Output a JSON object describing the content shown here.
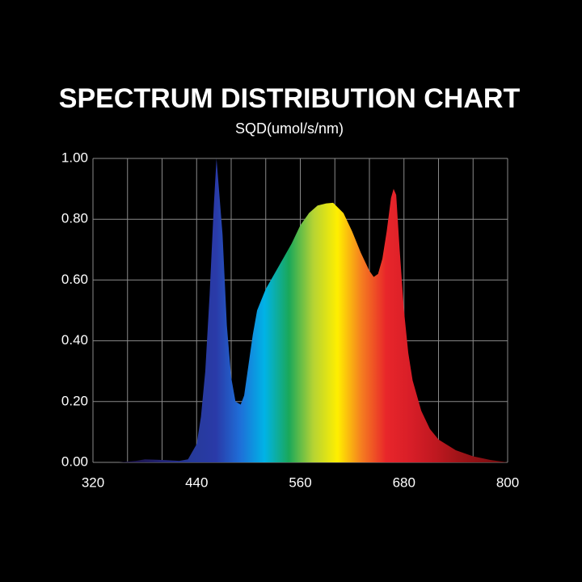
{
  "chart_data": {
    "type": "area",
    "title": "SPECTRUM DISTRIBUTION CHART",
    "subtitle": "SQD(umol/s/nm)",
    "x": [
      350,
      370,
      380,
      400,
      420,
      430,
      440,
      445,
      450,
      455,
      460,
      463,
      470,
      475,
      480,
      485,
      491,
      495,
      500,
      505,
      510,
      520,
      530,
      540,
      550,
      560,
      570,
      580,
      590,
      598,
      610,
      620,
      630,
      640,
      645,
      650,
      655,
      660,
      665,
      668,
      671,
      675,
      680,
      685,
      690,
      700,
      710,
      720,
      740,
      760,
      780,
      800
    ],
    "values": [
      0.0,
      0.005,
      0.01,
      0.008,
      0.005,
      0.01,
      0.06,
      0.15,
      0.3,
      0.55,
      0.85,
      1.0,
      0.75,
      0.45,
      0.28,
      0.2,
      0.19,
      0.22,
      0.32,
      0.42,
      0.5,
      0.57,
      0.62,
      0.67,
      0.72,
      0.78,
      0.82,
      0.845,
      0.852,
      0.854,
      0.82,
      0.76,
      0.69,
      0.63,
      0.61,
      0.62,
      0.67,
      0.76,
      0.87,
      0.9,
      0.88,
      0.7,
      0.5,
      0.36,
      0.27,
      0.17,
      0.11,
      0.075,
      0.04,
      0.02,
      0.008,
      0.0
    ],
    "colors": [
      "#1b1040",
      "#201a5a",
      "#262a80",
      "#263a9a",
      "#2a3aa8",
      "#1e6fd8",
      "#00b3e6",
      "#1aa85a",
      "#b5d334",
      "#ffef00",
      "#f57c20",
      "#e8262a",
      "#d81e28",
      "#c01820",
      "#a01418",
      "#8a1014",
      "#701010"
    ],
    "xlim": [
      320,
      800
    ],
    "ylim": [
      0,
      1
    ],
    "xticks": [
      320,
      440,
      560,
      680,
      800
    ],
    "x_grid": [
      320,
      360,
      400,
      440,
      480,
      520,
      560,
      600,
      640,
      680,
      720,
      760,
      800
    ],
    "yticks": [
      {
        "value": 0,
        "label": "0.00"
      },
      {
        "value": 0.2,
        "label": "0.20"
      },
      {
        "value": 0.4,
        "label": "0.40"
      },
      {
        "value": 0.6,
        "label": "0.60"
      },
      {
        "value": 0.8,
        "label": "0.80"
      },
      {
        "value": 1,
        "label": "1.00"
      }
    ],
    "grid": true
  }
}
